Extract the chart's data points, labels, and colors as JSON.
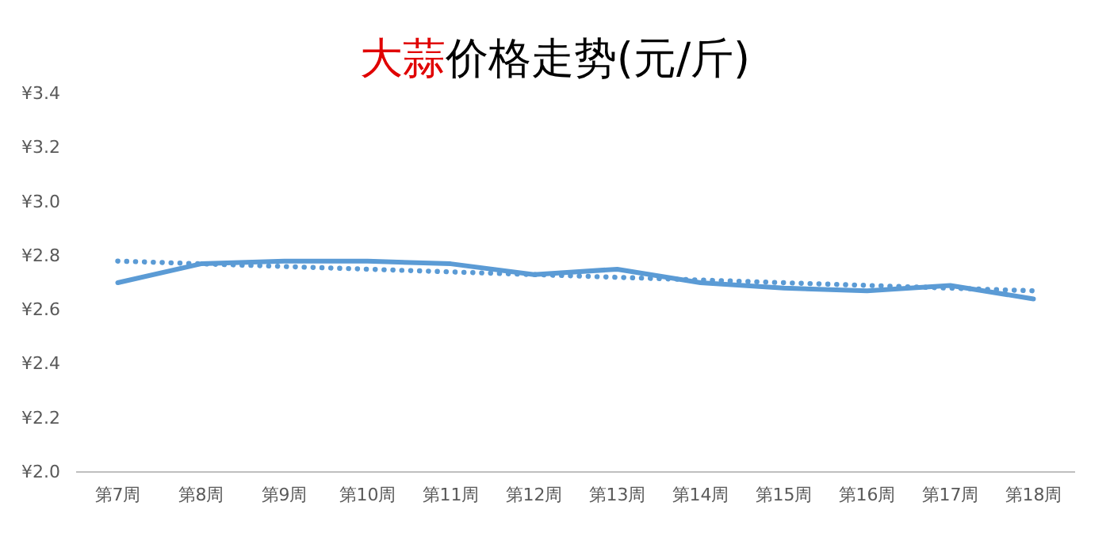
{
  "chart_data": {
    "type": "line",
    "title": "大蒜价格走势(元/斤)",
    "categories": [
      "第7周",
      "第8周",
      "第9周",
      "第10周",
      "第11周",
      "第12周",
      "第13周",
      "第14周",
      "第15周",
      "第16周",
      "第17周",
      "第18周"
    ],
    "series": [
      {
        "color": "#5b9bd5",
        "line_style": "solid",
        "values": [
          2.7,
          2.77,
          2.78,
          2.78,
          2.77,
          2.73,
          2.75,
          2.7,
          2.68,
          2.67,
          2.69,
          2.64
        ]
      },
      {
        "color": "#5b9bd5",
        "line_style": "dotted",
        "values": [
          2.78,
          2.77,
          2.76,
          2.75,
          2.74,
          2.73,
          2.72,
          2.71,
          2.7,
          2.69,
          2.68,
          2.67
        ]
      }
    ],
    "ylim": [
      2.0,
      3.4
    ],
    "yticks": [
      {
        "value": 2.0,
        "label": "¥2.0"
      },
      {
        "value": 2.2,
        "label": "¥2.2"
      },
      {
        "value": 2.4,
        "label": "¥2.4"
      },
      {
        "value": 2.6,
        "label": "¥2.6"
      },
      {
        "value": 2.8,
        "label": "¥2.8"
      },
      {
        "value": 3.0,
        "label": "¥3.0"
      },
      {
        "value": 3.2,
        "label": "¥3.2"
      },
      {
        "value": 3.4,
        "label": "¥3.4"
      }
    ],
    "grid": false,
    "marker": "none"
  }
}
